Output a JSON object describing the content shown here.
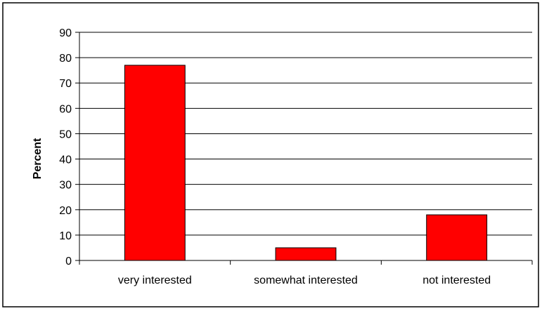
{
  "chart_data": {
    "type": "bar",
    "title": "",
    "xlabel": "",
    "ylabel": "Percent",
    "categories": [
      "very interested",
      "somewhat interested",
      "not interested"
    ],
    "values": [
      77,
      5,
      18
    ],
    "ylim": [
      0,
      90
    ],
    "yticks": [
      0,
      10,
      20,
      30,
      40,
      50,
      60,
      70,
      80,
      90
    ],
    "grid": true,
    "legend": "none",
    "colors": {
      "bar": "#ff0000",
      "bar_stroke": "#000000",
      "grid": "#000000"
    }
  }
}
